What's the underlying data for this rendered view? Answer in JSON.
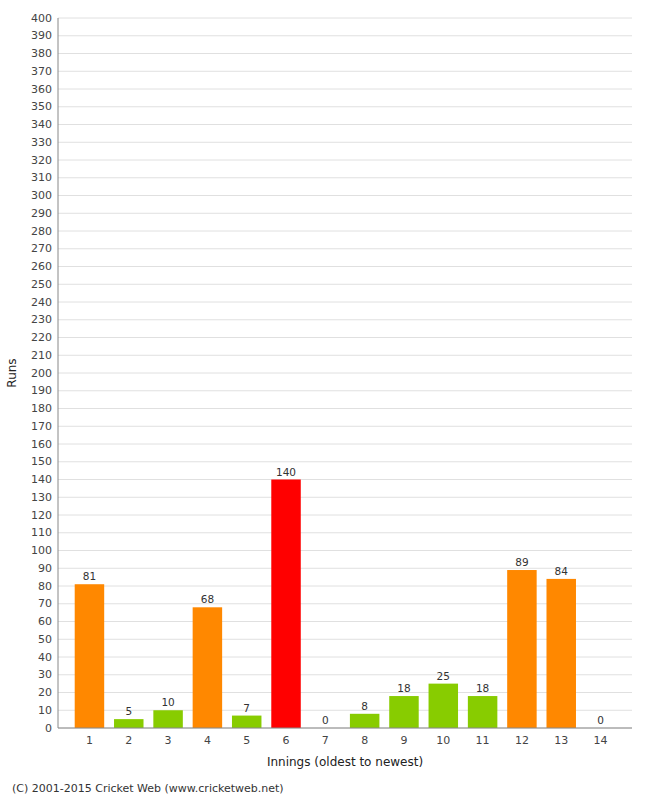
{
  "chart_data": {
    "type": "bar",
    "x": [
      1,
      2,
      3,
      4,
      5,
      6,
      7,
      8,
      9,
      10,
      11,
      12,
      13,
      14
    ],
    "values": [
      81,
      5,
      10,
      68,
      7,
      140,
      0,
      8,
      18,
      25,
      18,
      89,
      84,
      0
    ],
    "colors": [
      "#ff8800",
      "#88cc00",
      "#88cc00",
      "#ff8800",
      "#88cc00",
      "#ff0000",
      "#88cc00",
      "#88cc00",
      "#88cc00",
      "#88cc00",
      "#88cc00",
      "#ff8800",
      "#ff8800",
      "#88cc00"
    ],
    "xlabel": "Innings (oldest to newest)",
    "ylabel": "Runs",
    "xlim": [
      0.2,
      14.8
    ],
    "xticks": [
      1,
      2,
      3,
      4,
      5,
      6,
      7,
      8,
      9,
      10,
      11,
      12,
      13,
      14
    ],
    "ylim": [
      0,
      400
    ],
    "yticks": [
      0,
      10,
      20,
      30,
      40,
      50,
      60,
      70,
      80,
      90,
      100,
      110,
      120,
      130,
      140,
      150,
      160,
      170,
      180,
      190,
      200,
      210,
      220,
      230,
      240,
      250,
      260,
      270,
      280,
      290,
      300,
      310,
      320,
      330,
      340,
      350,
      360,
      370,
      380,
      390,
      400
    ],
    "grid": true,
    "data_labels": true,
    "annotations": [
      "(C) 2001-2015 Cricket Web (www.cricketweb.net)"
    ]
  }
}
